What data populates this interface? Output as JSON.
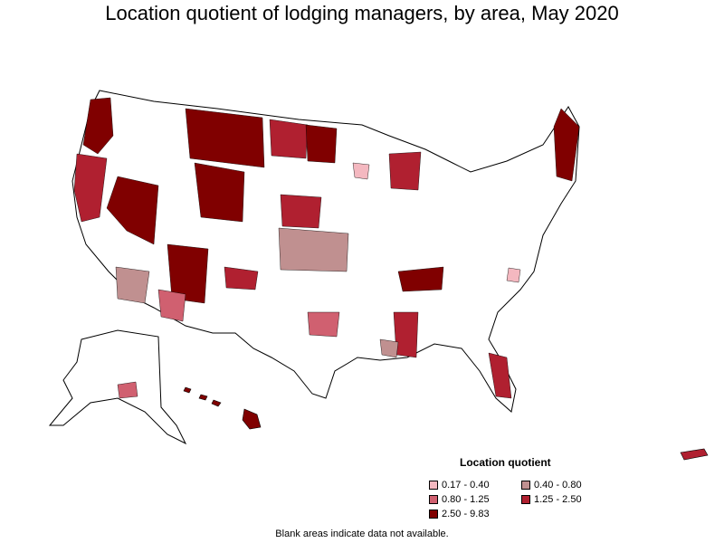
{
  "title": "Location quotient of lodging managers, by area, May 2020",
  "legend": {
    "title": "Location quotient",
    "items": [
      {
        "label": "0.17 - 0.40",
        "color": "#f4b8c0"
      },
      {
        "label": "0.40 - 0.80",
        "color": "#c09090"
      },
      {
        "label": "0.80 - 1.25",
        "color": "#d06070"
      },
      {
        "label": "1.25 - 2.50",
        "color": "#b02030"
      },
      {
        "label": "2.50 - 9.83",
        "color": "#800000"
      }
    ]
  },
  "note": "Blank areas indicate data not available."
}
